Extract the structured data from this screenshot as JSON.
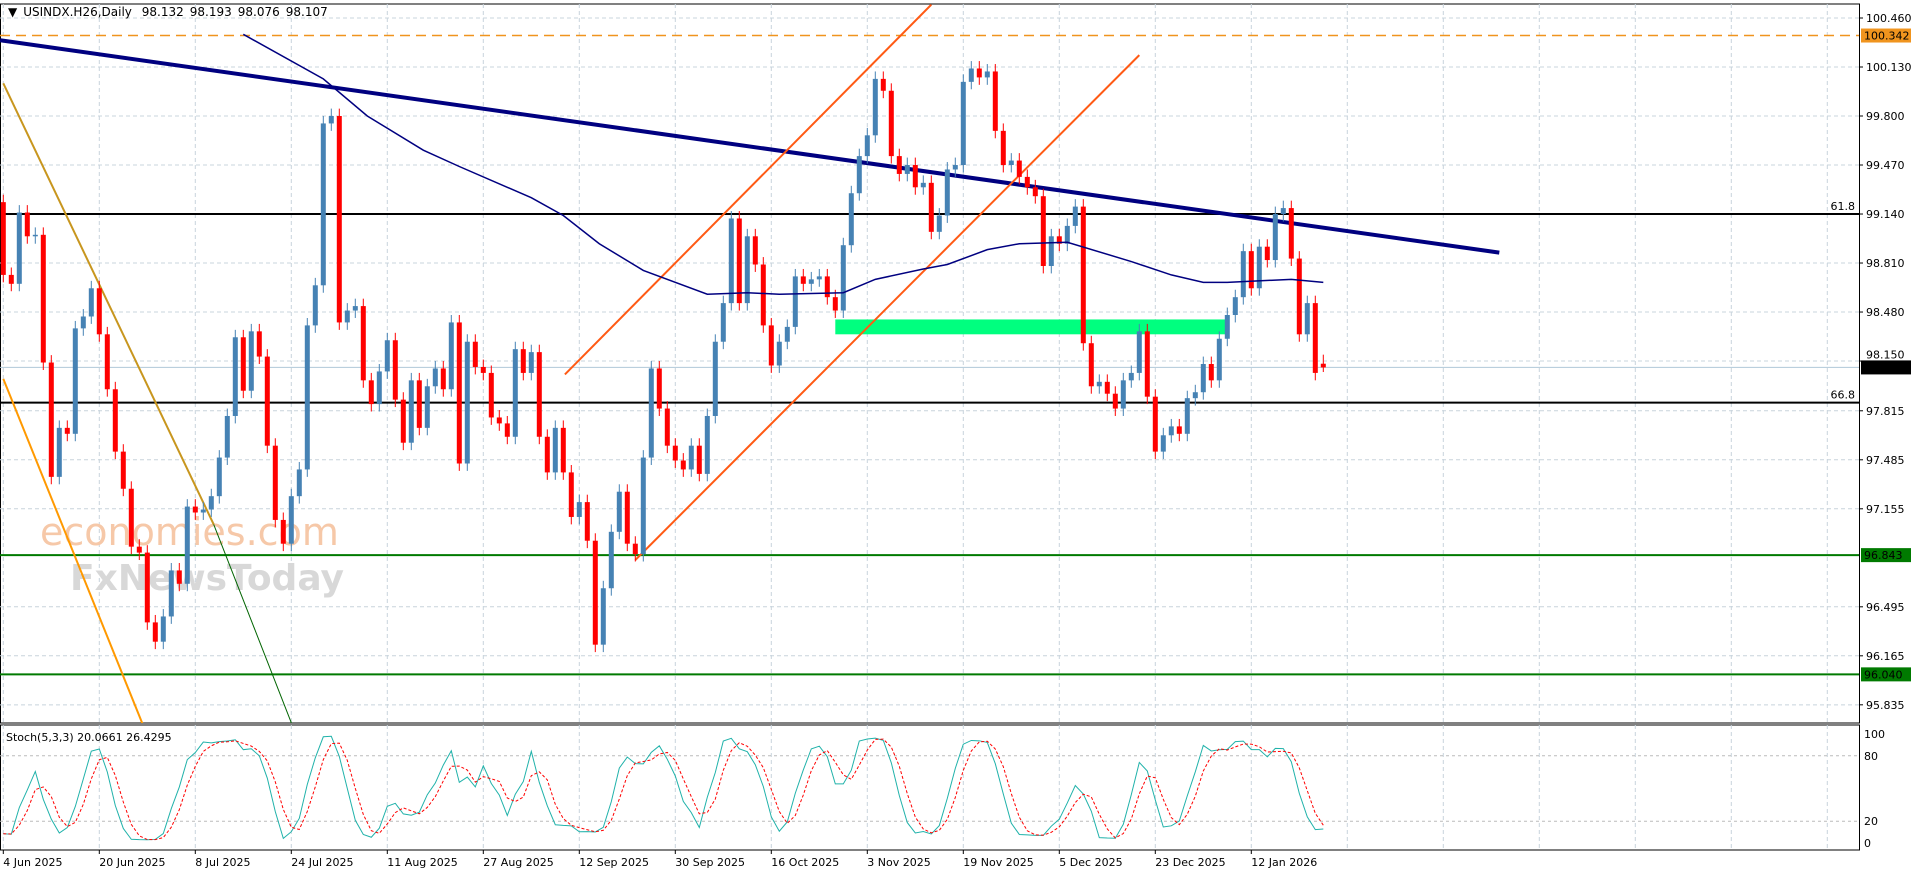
{
  "header": {
    "symbol_timeframe": "USINDX.H26,Daily",
    "open": "98.132",
    "high": "98.193",
    "low": "98.076",
    "close": "98.107",
    "menu_icon": "triangle-down-icon"
  },
  "stochastic": {
    "label": "Stoch(5,3,3)",
    "main_value": "20.0661",
    "signal_value": "26.4295",
    "axis_ticks": [
      "100",
      "80",
      "20",
      "0"
    ],
    "levels": [
      80,
      20
    ],
    "main_color": "#20b2aa",
    "signal_color": "#ff0000"
  },
  "watermark": {
    "line1": "economies.com",
    "line2": "FxNewsToday"
  },
  "chart_data": {
    "type": "candlestick",
    "title": "USINDX.H26,Daily",
    "ylim": [
      95.7,
      100.5
    ],
    "grid": true,
    "price_ticks": [
      "100.460",
      "100.130",
      "99.800",
      "99.470",
      "99.140",
      "98.810",
      "98.480",
      "98.150",
      "97.815",
      "97.485",
      "97.155",
      "96.495",
      "96.165",
      "95.835"
    ],
    "date_labels": [
      "4 Jun 2025",
      "20 Jun 2025",
      "8 Jul 2025",
      "24 Jul 2025",
      "11 Aug 2025",
      "27 Aug 2025",
      "12 Sep 2025",
      "30 Sep 2025",
      "16 Oct 2025",
      "3 Nov 2025",
      "19 Nov 2025",
      "5 Dec 2025",
      "23 Dec 2025",
      "12 Jan 2026"
    ],
    "bars_per_date_label": 12,
    "first_open": 99.22,
    "closes": [
      98.73,
      98.67,
      99.15,
      98.99,
      99.0,
      98.14,
      97.37,
      97.7,
      97.66,
      98.37,
      98.45,
      98.64,
      98.33,
      97.96,
      97.54,
      97.29,
      96.9,
      96.86,
      96.39,
      96.26,
      96.43,
      96.74,
      96.65,
      97.17,
      97.13,
      97.15,
      97.24,
      97.5,
      97.78,
      98.31,
      97.95,
      98.35,
      98.18,
      97.58,
      97.08,
      96.92,
      97.24,
      97.42,
      98.39,
      98.66,
      99.75,
      99.8,
      98.41,
      98.49,
      98.52,
      98.02,
      97.86,
      98.08,
      98.29,
      97.89,
      97.6,
      98.02,
      97.7,
      97.98,
      98.1,
      97.96,
      98.41,
      97.46,
      98.28,
      98.11,
      98.07,
      97.77,
      97.73,
      97.64,
      98.23,
      98.07,
      98.21,
      97.64,
      97.4,
      97.7,
      97.4,
      97.1,
      97.2,
      96.94,
      96.24,
      96.62,
      97.0,
      97.27,
      96.92,
      96.85,
      97.5,
      98.1,
      97.83,
      97.58,
      97.48,
      97.42,
      97.58,
      97.39,
      97.78,
      98.28,
      98.54,
      99.11,
      98.54,
      98.99,
      98.8,
      98.39,
      98.12,
      98.28,
      98.38,
      98.72,
      98.67,
      98.7,
      98.72,
      98.58,
      98.49,
      98.93,
      99.28,
      99.53,
      99.67,
      100.05,
      99.97,
      99.53,
      99.41,
      99.47,
      99.32,
      99.35,
      99.02,
      99.13,
      99.44,
      99.47,
      100.03,
      100.12,
      100.06,
      100.1,
      99.7,
      99.47,
      99.5,
      99.39,
      99.32,
      99.26,
      98.79,
      98.99,
      98.94,
      99.06,
      99.19,
      98.27,
      97.98,
      98.01,
      97.93,
      97.83,
      98.02,
      98.07,
      98.35,
      97.91,
      97.54,
      97.65,
      97.71,
      97.66,
      97.9,
      97.94,
      98.13,
      98.02,
      98.3,
      98.46,
      98.58,
      98.89,
      98.64,
      98.92,
      98.83,
      99.14,
      99.18,
      98.84,
      98.33,
      98.54,
      98.07,
      98.107
    ],
    "last_bar": {
      "open": 98.132,
      "high": 98.193,
      "low": 98.076,
      "close": 98.107
    },
    "bull_color": "#4682b4",
    "bear_color": "#ff0000",
    "moving_average": {
      "color": "#000080",
      "points": [
        [
          30,
          100.35
        ],
        [
          40,
          100.05
        ],
        [
          45.5,
          99.8
        ],
        [
          52.5,
          99.57
        ],
        [
          57,
          99.46
        ],
        [
          66,
          99.25
        ],
        [
          70,
          99.13
        ],
        [
          74.5,
          98.94
        ],
        [
          80,
          98.76
        ],
        [
          88,
          98.6
        ],
        [
          93,
          98.61
        ],
        [
          97,
          98.6
        ],
        [
          105,
          98.61
        ],
        [
          109,
          98.7
        ],
        [
          115,
          98.77
        ],
        [
          118,
          98.8
        ],
        [
          123,
          98.9
        ],
        [
          127,
          98.94
        ],
        [
          133,
          98.95
        ],
        [
          141,
          98.82
        ],
        [
          146,
          98.73
        ],
        [
          150,
          98.68
        ],
        [
          153,
          98.68
        ],
        [
          161,
          98.7
        ],
        [
          165,
          98.68
        ]
      ]
    },
    "trendlines": [
      {
        "name": "descending-trendline",
        "color": "#000080",
        "from": [
          -0.4,
          100.31
        ],
        "to": [
          187,
          98.88
        ]
      },
      {
        "name": "channel-upper-line",
        "color": "#ff5a14",
        "from": [
          70.2,
          98.06
        ],
        "to": [
          116,
          100.55
        ]
      },
      {
        "name": "channel-lower-line",
        "color": "#ff5a14",
        "from": [
          79,
          96.81
        ],
        "to": [
          142,
          100.21
        ]
      },
      {
        "name": "falling-line-golden",
        "color": "#c8961e",
        "from": [
          0,
          100.02
        ],
        "to": [
          26.3,
          97.05
        ]
      },
      {
        "name": "falling-line-green-extension",
        "color": "#006400",
        "from": [
          26.3,
          97.05
        ],
        "to": [
          37.7,
          95.48
        ]
      },
      {
        "name": "falling-line-orange",
        "color": "#ff9900",
        "from": [
          0,
          98.03
        ],
        "to": [
          18.2,
          95.6
        ]
      }
    ],
    "support_zone": {
      "from_bar": 104,
      "to_bar": 153,
      "top": 98.43,
      "bottom": 98.33,
      "color": "#00ff7f"
    },
    "horizontal_levels": [
      {
        "name": "resistance-dashed-level",
        "price": 100.342,
        "label": "100.342",
        "color": "#f0941e",
        "dashed": true
      },
      {
        "name": "fib-61-8-level",
        "price": 99.14,
        "fib_label": "61.8",
        "color": "#000000"
      },
      {
        "name": "fib-66-8-level",
        "price": 97.87,
        "fib_label": "66.8",
        "color": "#000000"
      },
      {
        "name": "support-level-1",
        "price": 96.843,
        "label": "96.843",
        "color": "#007a00"
      },
      {
        "name": "support-level-2",
        "price": 96.04,
        "label": "96.040",
        "color": "#007a00"
      },
      {
        "name": "current-price-line",
        "price": 98.107,
        "label": "98.107",
        "color": "#000000",
        "line_color": "#b0c8d8"
      }
    ]
  }
}
